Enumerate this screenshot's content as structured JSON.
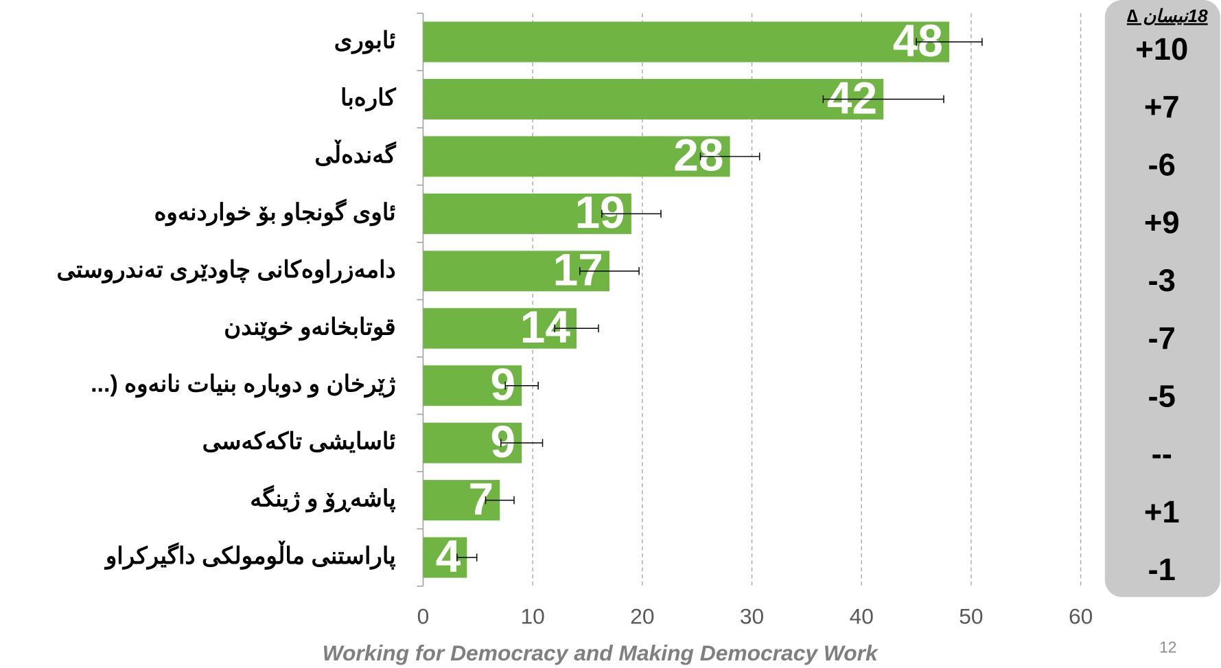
{
  "chart_data": {
    "type": "bar",
    "orientation": "horizontal",
    "categories": [
      "ئابوری",
      "کارەبا",
      "گەندەڵی",
      "ئاوی گونجاو بۆ خواردنەوە",
      "دامەزراوەکانی چاودێری تەندروستی",
      "قوتابخانەو  خوێندن",
      "ژێرخان و دوبارە بنیات نانەوە (...",
      "ئاسایشی تاکەکەسی",
      "پاشەڕۆ و ژینگە",
      "پاراستنی ماڵومولکی داگیرکراو"
    ],
    "values": [
      48,
      42,
      28,
      19,
      17,
      14,
      9,
      9,
      7,
      4
    ],
    "errors": [
      3,
      5.5,
      2.7,
      2.7,
      2.7,
      2,
      1.5,
      1.9,
      1.3,
      0.9
    ],
    "color": "#70b543",
    "xlim": [
      0,
      60
    ],
    "xticks": [
      0,
      10,
      20,
      30,
      40,
      50,
      60
    ],
    "grid": true,
    "delta_header": "18نیسان ∆",
    "deltas": [
      "+10",
      "+7",
      "-6",
      "+9",
      "-3",
      "-7",
      "-5",
      "--",
      "+1",
      "-1"
    ],
    "footer": "Working for Democracy and Making Democracy Work",
    "page_number": "12"
  }
}
